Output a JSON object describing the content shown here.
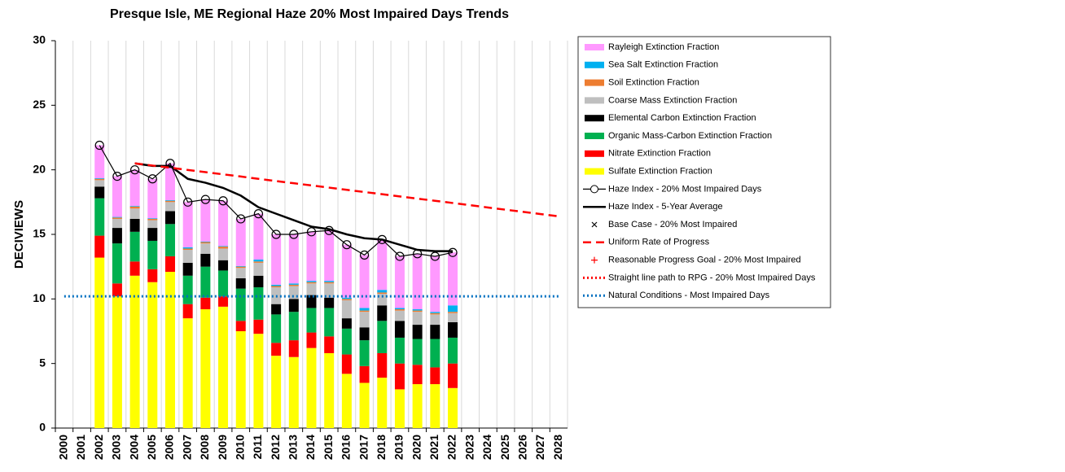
{
  "chart_data": {
    "type": "stacked-bar-line",
    "title": "Presque Isle, ME Regional Haze 20% Most Impaired Days Trends",
    "y_label": "DECIVIEWS",
    "categories": [
      "2000",
      "2001",
      "2002",
      "2003",
      "2004",
      "2005",
      "2006",
      "2007",
      "2008",
      "2009",
      "2010",
      "2011",
      "2012",
      "2013",
      "2014",
      "2015",
      "2016",
      "2017",
      "2018",
      "2019",
      "2020",
      "2021",
      "2022",
      "2023",
      "2024",
      "2025",
      "2026",
      "2027",
      "2028"
    ],
    "ylim": [
      0,
      30
    ],
    "yticks": [
      0,
      5,
      10,
      15,
      20,
      25,
      30
    ],
    "series": [
      {
        "name": "Sulfate Extinction Fraction",
        "color": "#ffff00",
        "values": [
          null,
          null,
          13.2,
          10.2,
          11.8,
          11.3,
          12.1,
          8.5,
          9.2,
          9.4,
          7.5,
          7.3,
          5.6,
          5.5,
          6.2,
          5.8,
          4.2,
          3.5,
          3.9,
          3.0,
          3.4,
          3.4,
          3.1,
          null,
          null,
          null,
          null,
          null,
          null
        ]
      },
      {
        "name": "Nitrate Extinction Fraction",
        "color": "#ff0000",
        "values": [
          null,
          null,
          1.7,
          1.0,
          1.1,
          1.0,
          1.2,
          1.1,
          0.9,
          0.8,
          0.8,
          1.1,
          1.0,
          1.3,
          1.2,
          1.3,
          1.5,
          1.3,
          1.9,
          2.0,
          1.5,
          1.3,
          1.9,
          null,
          null,
          null,
          null,
          null,
          null
        ]
      },
      {
        "name": "Organic Mass-Carbon Extinction Fraction",
        "color": "#00b050",
        "values": [
          null,
          null,
          2.9,
          3.1,
          2.3,
          2.2,
          2.5,
          2.2,
          2.4,
          2.0,
          2.5,
          2.5,
          2.2,
          2.2,
          1.9,
          2.2,
          2.0,
          2.0,
          2.5,
          2.0,
          2.0,
          2.2,
          2.0,
          null,
          null,
          null,
          null,
          null,
          null
        ]
      },
      {
        "name": "Elemental Carbon Extinction Fraction",
        "color": "#000000",
        "values": [
          null,
          null,
          0.9,
          1.2,
          1.0,
          1.0,
          1.0,
          1.0,
          1.0,
          0.8,
          0.8,
          0.9,
          0.8,
          1.0,
          1.0,
          0.8,
          0.8,
          1.0,
          1.2,
          1.3,
          1.1,
          1.1,
          1.2,
          null,
          null,
          null,
          null,
          null,
          null
        ]
      },
      {
        "name": "Coarse Mass Extinction Fraction",
        "color": "#bfbfbf",
        "values": [
          null,
          null,
          0.5,
          0.7,
          0.8,
          0.6,
          0.7,
          1.0,
          0.8,
          0.9,
          0.8,
          1.0,
          1.3,
          1.0,
          0.9,
          1.1,
          1.4,
          1.2,
          0.9,
          0.8,
          1.0,
          0.8,
          0.7,
          null,
          null,
          null,
          null,
          null,
          null
        ]
      },
      {
        "name": "Soil Extinction Fraction",
        "color": "#ed7d31",
        "values": [
          null,
          null,
          0.1,
          0.1,
          0.15,
          0.1,
          0.1,
          0.1,
          0.1,
          0.15,
          0.1,
          0.1,
          0.1,
          0.1,
          0.1,
          0.1,
          0.1,
          0.1,
          0.1,
          0.1,
          0.1,
          0.1,
          0.1,
          null,
          null,
          null,
          null,
          null,
          null
        ]
      },
      {
        "name": "Sea Salt Extinction Fraction",
        "color": "#00b0f0",
        "values": [
          null,
          null,
          0.05,
          0.05,
          0.05,
          0.05,
          0.05,
          0.1,
          0.05,
          0.05,
          0.05,
          0.15,
          0.1,
          0.1,
          0.1,
          0.1,
          0.1,
          0.2,
          0.2,
          0.1,
          0.1,
          0.1,
          0.5,
          null,
          null,
          null,
          null,
          null,
          null
        ]
      },
      {
        "name": "Rayleigh Extinction Fraction",
        "color": "#ff99ff",
        "values": [
          null,
          null,
          2.55,
          3.15,
          2.8,
          3.05,
          2.85,
          3.5,
          3.25,
          3.5,
          3.65,
          3.55,
          3.9,
          3.8,
          3.8,
          3.9,
          4.1,
          4.1,
          3.9,
          4.0,
          4.3,
          4.3,
          4.1,
          null,
          null,
          null,
          null,
          null,
          null
        ]
      }
    ],
    "line_series": [
      {
        "name": "Haze Index - 20% Most Impaired Days",
        "color": "#000000",
        "style": "line-circle",
        "values": [
          null,
          null,
          21.9,
          19.5,
          20.0,
          19.3,
          20.5,
          17.5,
          17.7,
          17.6,
          16.2,
          16.6,
          15.0,
          15.0,
          15.2,
          15.3,
          14.2,
          13.4,
          14.6,
          13.3,
          13.5,
          13.3,
          13.6,
          null,
          null,
          null,
          null,
          null,
          null
        ]
      },
      {
        "name": "Haze Index - 5-Year Average",
        "color": "#000000",
        "style": "line-thick",
        "values": [
          null,
          null,
          null,
          null,
          20.5,
          20.3,
          20.3,
          19.3,
          19.0,
          18.6,
          18.0,
          17.1,
          16.6,
          16.1,
          15.6,
          15.4,
          15.0,
          14.7,
          14.6,
          14.2,
          13.8,
          13.7,
          13.7,
          null,
          null,
          null,
          null,
          null,
          null
        ]
      },
      {
        "name": "Base Case - 20% Most Impaired",
        "color": "#000000",
        "style": "cross",
        "values": [
          null,
          null,
          null,
          null,
          null,
          null,
          null,
          null,
          null,
          null,
          null,
          null,
          null,
          null,
          null,
          null,
          null,
          null,
          null,
          null,
          null,
          null,
          null,
          null,
          null,
          null,
          null,
          null,
          null
        ]
      },
      {
        "name": "Uniform Rate of Progress",
        "color": "#ff0000",
        "style": "dashed",
        "values": [
          null,
          null,
          null,
          null,
          20.5,
          20.33,
          20.16,
          19.99,
          19.82,
          19.65,
          19.48,
          19.3,
          19.13,
          18.96,
          18.79,
          18.62,
          18.45,
          18.28,
          18.11,
          17.94,
          17.77,
          17.6,
          17.43,
          17.26,
          17.08,
          16.91,
          16.74,
          16.57,
          16.4
        ]
      },
      {
        "name": "Reasonable Progress Goal - 20% Most Impaired",
        "color": "#ff0000",
        "style": "plus",
        "values": [
          null,
          null,
          null,
          null,
          null,
          null,
          null,
          null,
          null,
          null,
          null,
          null,
          null,
          null,
          null,
          null,
          null,
          null,
          null,
          null,
          null,
          null,
          null,
          null,
          null,
          null,
          null,
          null,
          null
        ]
      },
      {
        "name": "Straight line path to RPG - 20% Most Impaired Days",
        "color": "#ff0000",
        "style": "dotted",
        "values": [
          null,
          null,
          null,
          null,
          null,
          null,
          null,
          null,
          null,
          null,
          null,
          null,
          null,
          null,
          null,
          null,
          null,
          null,
          null,
          null,
          null,
          null,
          null,
          null,
          null,
          null,
          null,
          null,
          null
        ]
      }
    ],
    "natural_conditions": {
      "name": "Natural Conditions - Most Impaired Days",
      "color": "#0070c0",
      "style": "dotted",
      "value": 10.2
    }
  }
}
